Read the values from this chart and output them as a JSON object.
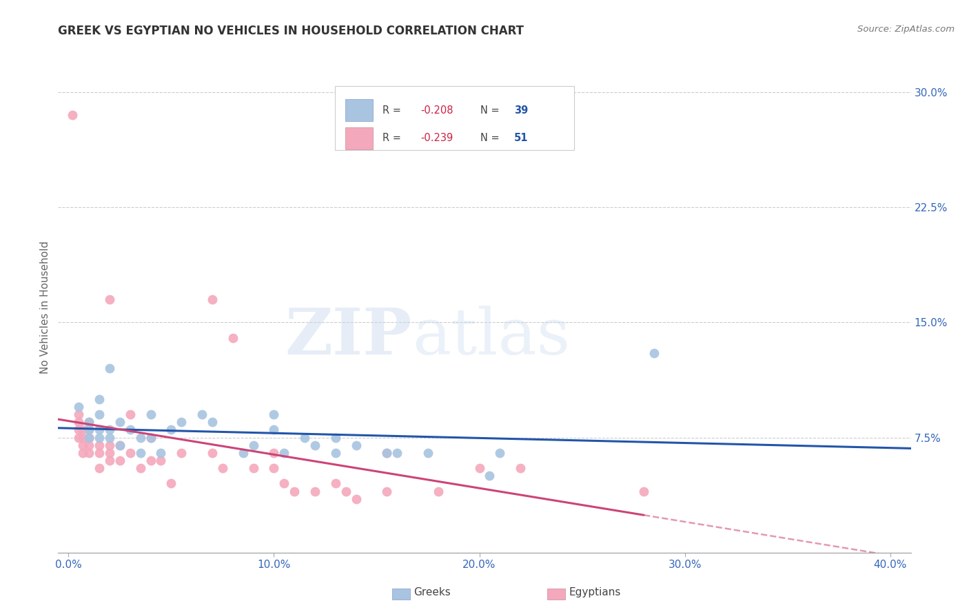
{
  "title": "GREEK VS EGYPTIAN NO VEHICLES IN HOUSEHOLD CORRELATION CHART",
  "source": "Source: ZipAtlas.com",
  "ylabel": "No Vehicles in Household",
  "xlabel_ticks": [
    "0.0%",
    "10.0%",
    "20.0%",
    "30.0%",
    "40.0%"
  ],
  "xlabel_vals": [
    0.0,
    10.0,
    20.0,
    30.0,
    40.0
  ],
  "ylabel_ticks": [
    "7.5%",
    "15.0%",
    "22.5%",
    "30.0%"
  ],
  "ylabel_vals": [
    7.5,
    15.0,
    22.5,
    30.0
  ],
  "xlim": [
    -0.5,
    41.0
  ],
  "ylim": [
    0.0,
    32.0
  ],
  "greek_R": -0.208,
  "greek_N": 39,
  "egyptian_R": -0.239,
  "egyptian_N": 51,
  "greek_color": "#a8c4e0",
  "egyptian_color": "#f4a8bc",
  "greek_line_color": "#2255aa",
  "egyptian_line_color": "#cc4477",
  "watermark_zip": "ZIP",
  "watermark_atlas": "atlas",
  "greek_x": [
    0.5,
    1.0,
    1.0,
    1.0,
    1.5,
    1.5,
    1.5,
    1.5,
    2.0,
    2.0,
    2.0,
    2.5,
    2.5,
    3.0,
    3.5,
    3.5,
    4.0,
    4.0,
    4.5,
    5.0,
    5.5,
    6.5,
    7.0,
    8.5,
    9.0,
    10.0,
    10.0,
    10.5,
    11.5,
    12.0,
    13.0,
    13.0,
    14.0,
    15.5,
    16.0,
    17.5,
    20.5,
    21.0,
    28.5
  ],
  "greek_y": [
    9.5,
    7.5,
    8.0,
    8.5,
    7.5,
    8.0,
    9.0,
    10.0,
    7.5,
    8.0,
    12.0,
    7.0,
    8.5,
    8.0,
    6.5,
    7.5,
    7.5,
    9.0,
    6.5,
    8.0,
    8.5,
    9.0,
    8.5,
    6.5,
    7.0,
    8.0,
    9.0,
    6.5,
    7.5,
    7.0,
    6.5,
    7.5,
    7.0,
    6.5,
    6.5,
    6.5,
    5.0,
    6.5,
    13.0
  ],
  "egyptian_x": [
    0.2,
    0.5,
    0.5,
    0.5,
    0.5,
    0.7,
    0.7,
    0.7,
    0.7,
    1.0,
    1.0,
    1.0,
    1.0,
    1.0,
    1.0,
    1.5,
    1.5,
    1.5,
    2.0,
    2.0,
    2.0,
    2.0,
    2.5,
    2.5,
    3.0,
    3.0,
    3.5,
    4.0,
    4.0,
    4.5,
    5.0,
    5.5,
    7.0,
    7.0,
    7.5,
    8.0,
    9.0,
    10.0,
    10.0,
    10.5,
    11.0,
    12.0,
    13.0,
    13.5,
    14.0,
    15.5,
    15.5,
    18.0,
    20.0,
    22.0,
    28.0
  ],
  "egyptian_y": [
    28.5,
    8.5,
    9.0,
    8.0,
    7.5,
    7.5,
    8.0,
    6.5,
    7.0,
    7.5,
    8.0,
    8.5,
    7.0,
    6.5,
    7.5,
    6.5,
    7.0,
    5.5,
    6.5,
    7.0,
    6.0,
    16.5,
    7.0,
    6.0,
    9.0,
    6.5,
    5.5,
    7.5,
    6.0,
    6.0,
    4.5,
    6.5,
    16.5,
    6.5,
    5.5,
    14.0,
    5.5,
    5.5,
    6.5,
    4.5,
    4.0,
    4.0,
    4.5,
    4.0,
    3.5,
    4.0,
    6.5,
    4.0,
    5.5,
    5.5,
    4.0
  ],
  "legend_R_color": "#cc2244",
  "legend_N_color": "#2255aa",
  "title_fontsize": 12,
  "tick_fontsize": 11
}
